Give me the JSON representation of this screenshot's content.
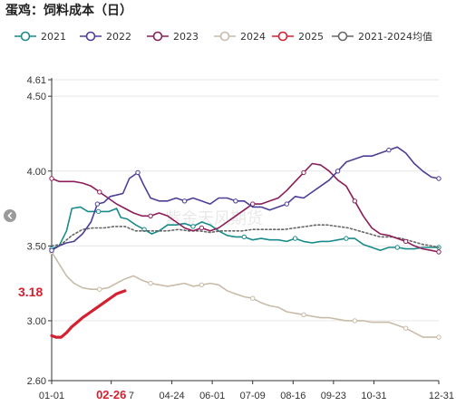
{
  "chart_data": {
    "type": "line",
    "title": "蛋鸡：饲料成本（日）",
    "watermark": "紫金天风期货",
    "ylim": [
      2.6,
      4.61
    ],
    "yticks": [
      "4.61",
      "4.50",
      "4.00",
      "3.50",
      "3.00",
      "2.60"
    ],
    "yticks_values": [
      4.61,
      4.5,
      4.0,
      3.5,
      3.0,
      2.6
    ],
    "xlim_day": [
      1,
      365
    ],
    "xticks": [
      "01-01",
      "02-26",
      "04-24",
      "06-01",
      "07-09",
      "08-16",
      "09-23",
      "10-31",
      "12-31"
    ],
    "xticks_day": [
      1,
      57,
      114,
      152,
      190,
      228,
      266,
      304,
      365
    ],
    "highlight_tick": "02-26",
    "partial_tick_label": "7",
    "partial_tick_day": 76,
    "callout": {
      "text": "3.18",
      "y": 3.18
    },
    "series": [
      {
        "name": "2021",
        "color": "#1a8a8a",
        "points": [
          [
            1,
            3.48
          ],
          [
            8,
            3.5
          ],
          [
            15,
            3.6
          ],
          [
            20,
            3.75
          ],
          [
            28,
            3.76
          ],
          [
            35,
            3.73
          ],
          [
            45,
            3.73
          ],
          [
            55,
            3.73
          ],
          [
            62,
            3.75
          ],
          [
            66,
            3.69
          ],
          [
            72,
            3.68
          ],
          [
            80,
            3.64
          ],
          [
            88,
            3.61
          ],
          [
            95,
            3.58
          ],
          [
            102,
            3.6
          ],
          [
            110,
            3.64
          ],
          [
            118,
            3.64
          ],
          [
            126,
            3.65
          ],
          [
            134,
            3.63
          ],
          [
            142,
            3.66
          ],
          [
            150,
            3.64
          ],
          [
            158,
            3.6
          ],
          [
            166,
            3.57
          ],
          [
            174,
            3.56
          ],
          [
            182,
            3.56
          ],
          [
            190,
            3.54
          ],
          [
            198,
            3.55
          ],
          [
            206,
            3.54
          ],
          [
            214,
            3.54
          ],
          [
            222,
            3.53
          ],
          [
            230,
            3.55
          ],
          [
            238,
            3.53
          ],
          [
            246,
            3.52
          ],
          [
            254,
            3.53
          ],
          [
            262,
            3.53
          ],
          [
            270,
            3.54
          ],
          [
            278,
            3.55
          ],
          [
            286,
            3.55
          ],
          [
            294,
            3.51
          ],
          [
            302,
            3.49
          ],
          [
            310,
            3.47
          ],
          [
            318,
            3.49
          ],
          [
            326,
            3.49
          ],
          [
            334,
            3.48
          ],
          [
            342,
            3.48
          ],
          [
            350,
            3.49
          ],
          [
            358,
            3.49
          ],
          [
            365,
            3.49
          ]
        ]
      },
      {
        "name": "2022",
        "color": "#4a3f96",
        "points": [
          [
            1,
            3.47
          ],
          [
            8,
            3.5
          ],
          [
            15,
            3.52
          ],
          [
            22,
            3.53
          ],
          [
            30,
            3.58
          ],
          [
            38,
            3.66
          ],
          [
            44,
            3.78
          ],
          [
            50,
            3.79
          ],
          [
            56,
            3.83
          ],
          [
            62,
            3.84
          ],
          [
            68,
            3.85
          ],
          [
            74,
            3.95
          ],
          [
            82,
            3.99
          ],
          [
            88,
            3.9
          ],
          [
            94,
            3.82
          ],
          [
            102,
            3.8
          ],
          [
            110,
            3.8
          ],
          [
            118,
            3.82
          ],
          [
            126,
            3.8
          ],
          [
            134,
            3.82
          ],
          [
            142,
            3.8
          ],
          [
            150,
            3.78
          ],
          [
            158,
            3.82
          ],
          [
            166,
            3.82
          ],
          [
            174,
            3.8
          ],
          [
            182,
            3.8
          ],
          [
            190,
            3.76
          ],
          [
            198,
            3.76
          ],
          [
            206,
            3.74
          ],
          [
            214,
            3.76
          ],
          [
            222,
            3.78
          ],
          [
            230,
            3.83
          ],
          [
            238,
            3.82
          ],
          [
            246,
            3.86
          ],
          [
            254,
            3.9
          ],
          [
            262,
            3.94
          ],
          [
            270,
            4.0
          ],
          [
            278,
            4.06
          ],
          [
            286,
            4.08
          ],
          [
            294,
            4.1
          ],
          [
            302,
            4.1
          ],
          [
            310,
            4.12
          ],
          [
            318,
            4.14
          ],
          [
            326,
            4.16
          ],
          [
            334,
            4.12
          ],
          [
            342,
            4.05
          ],
          [
            350,
            4.0
          ],
          [
            358,
            3.96
          ],
          [
            365,
            3.95
          ]
        ]
      },
      {
        "name": "2023",
        "color": "#8b1e5a",
        "points": [
          [
            1,
            3.95
          ],
          [
            8,
            3.93
          ],
          [
            15,
            3.93
          ],
          [
            22,
            3.93
          ],
          [
            30,
            3.92
          ],
          [
            38,
            3.9
          ],
          [
            46,
            3.86
          ],
          [
            54,
            3.82
          ],
          [
            62,
            3.78
          ],
          [
            70,
            3.75
          ],
          [
            78,
            3.72
          ],
          [
            86,
            3.7
          ],
          [
            94,
            3.7
          ],
          [
            102,
            3.72
          ],
          [
            110,
            3.7
          ],
          [
            118,
            3.66
          ],
          [
            126,
            3.62
          ],
          [
            134,
            3.6
          ],
          [
            142,
            3.62
          ],
          [
            150,
            3.6
          ],
          [
            158,
            3.62
          ],
          [
            166,
            3.66
          ],
          [
            174,
            3.7
          ],
          [
            182,
            3.74
          ],
          [
            190,
            3.78
          ],
          [
            198,
            3.78
          ],
          [
            206,
            3.8
          ],
          [
            214,
            3.82
          ],
          [
            222,
            3.87
          ],
          [
            230,
            3.93
          ],
          [
            238,
            3.99
          ],
          [
            246,
            4.05
          ],
          [
            254,
            4.04
          ],
          [
            262,
            4.0
          ],
          [
            270,
            3.94
          ],
          [
            278,
            3.9
          ],
          [
            286,
            3.8
          ],
          [
            294,
            3.7
          ],
          [
            302,
            3.62
          ],
          [
            310,
            3.58
          ],
          [
            318,
            3.57
          ],
          [
            326,
            3.55
          ],
          [
            334,
            3.53
          ],
          [
            342,
            3.5
          ],
          [
            350,
            3.48
          ],
          [
            358,
            3.47
          ],
          [
            365,
            3.46
          ]
        ]
      },
      {
        "name": "2024",
        "color": "#c9bba8",
        "points": [
          [
            1,
            3.46
          ],
          [
            8,
            3.38
          ],
          [
            15,
            3.3
          ],
          [
            22,
            3.25
          ],
          [
            30,
            3.22
          ],
          [
            38,
            3.21
          ],
          [
            46,
            3.21
          ],
          [
            54,
            3.22
          ],
          [
            62,
            3.25
          ],
          [
            70,
            3.28
          ],
          [
            78,
            3.3
          ],
          [
            86,
            3.27
          ],
          [
            94,
            3.25
          ],
          [
            102,
            3.24
          ],
          [
            110,
            3.23
          ],
          [
            118,
            3.24
          ],
          [
            126,
            3.25
          ],
          [
            134,
            3.23
          ],
          [
            142,
            3.24
          ],
          [
            150,
            3.25
          ],
          [
            158,
            3.24
          ],
          [
            166,
            3.2
          ],
          [
            174,
            3.18
          ],
          [
            182,
            3.16
          ],
          [
            190,
            3.15
          ],
          [
            198,
            3.12
          ],
          [
            206,
            3.1
          ],
          [
            214,
            3.09
          ],
          [
            222,
            3.06
          ],
          [
            230,
            3.05
          ],
          [
            238,
            3.04
          ],
          [
            246,
            3.03
          ],
          [
            254,
            3.02
          ],
          [
            262,
            3.02
          ],
          [
            270,
            3.01
          ],
          [
            278,
            3.0
          ],
          [
            286,
            3.0
          ],
          [
            294,
            3.0
          ],
          [
            302,
            2.99
          ],
          [
            310,
            2.99
          ],
          [
            318,
            2.99
          ],
          [
            326,
            2.97
          ],
          [
            334,
            2.95
          ],
          [
            342,
            2.92
          ],
          [
            350,
            2.89
          ],
          [
            358,
            2.89
          ],
          [
            365,
            2.89
          ]
        ]
      },
      {
        "name": "2025",
        "color": "#d42030",
        "points": [
          [
            1,
            2.9
          ],
          [
            5,
            2.89
          ],
          [
            10,
            2.89
          ],
          [
            15,
            2.92
          ],
          [
            20,
            2.96
          ],
          [
            25,
            2.99
          ],
          [
            30,
            3.02
          ],
          [
            34,
            3.04
          ],
          [
            38,
            3.06
          ],
          [
            42,
            3.08
          ],
          [
            46,
            3.1
          ],
          [
            50,
            3.12
          ],
          [
            54,
            3.14
          ],
          [
            58,
            3.16
          ],
          [
            62,
            3.18
          ],
          [
            66,
            3.19
          ],
          [
            70,
            3.2
          ]
        ]
      },
      {
        "name": "2021-2024均值",
        "color": "#666666",
        "dashed": true,
        "points": [
          [
            1,
            3.5
          ],
          [
            10,
            3.51
          ],
          [
            20,
            3.57
          ],
          [
            30,
            3.61
          ],
          [
            40,
            3.62
          ],
          [
            50,
            3.62
          ],
          [
            60,
            3.63
          ],
          [
            70,
            3.63
          ],
          [
            80,
            3.6
          ],
          [
            90,
            3.6
          ],
          [
            100,
            3.6
          ],
          [
            110,
            3.6
          ],
          [
            120,
            3.61
          ],
          [
            130,
            3.6
          ],
          [
            140,
            3.6
          ],
          [
            150,
            3.59
          ],
          [
            160,
            3.6
          ],
          [
            170,
            3.6
          ],
          [
            180,
            3.6
          ],
          [
            190,
            3.61
          ],
          [
            200,
            3.61
          ],
          [
            210,
            3.61
          ],
          [
            220,
            3.61
          ],
          [
            230,
            3.62
          ],
          [
            240,
            3.63
          ],
          [
            250,
            3.64
          ],
          [
            260,
            3.64
          ],
          [
            270,
            3.63
          ],
          [
            280,
            3.62
          ],
          [
            290,
            3.6
          ],
          [
            300,
            3.58
          ],
          [
            310,
            3.56
          ],
          [
            320,
            3.56
          ],
          [
            330,
            3.55
          ],
          [
            340,
            3.53
          ],
          [
            350,
            3.51
          ],
          [
            358,
            3.5
          ],
          [
            365,
            3.49
          ]
        ]
      }
    ]
  }
}
